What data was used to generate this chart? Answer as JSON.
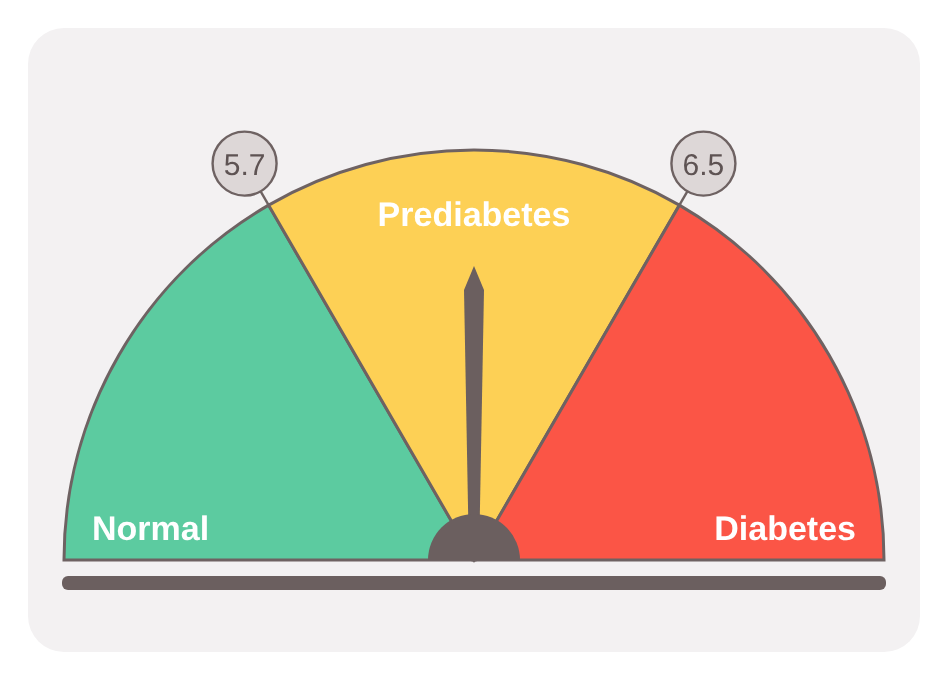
{
  "chart_data": {
    "type": "pie",
    "categories": [
      "Normal",
      "Prediabetes",
      "Diabetes"
    ],
    "values": [
      33.3,
      33.4,
      33.3
    ],
    "colors": [
      "#5ccba0",
      "#fdd055",
      "#fb5546"
    ],
    "needle": "Prediabetes",
    "annotations": [
      "5.7",
      "6.5"
    ]
  }
}
